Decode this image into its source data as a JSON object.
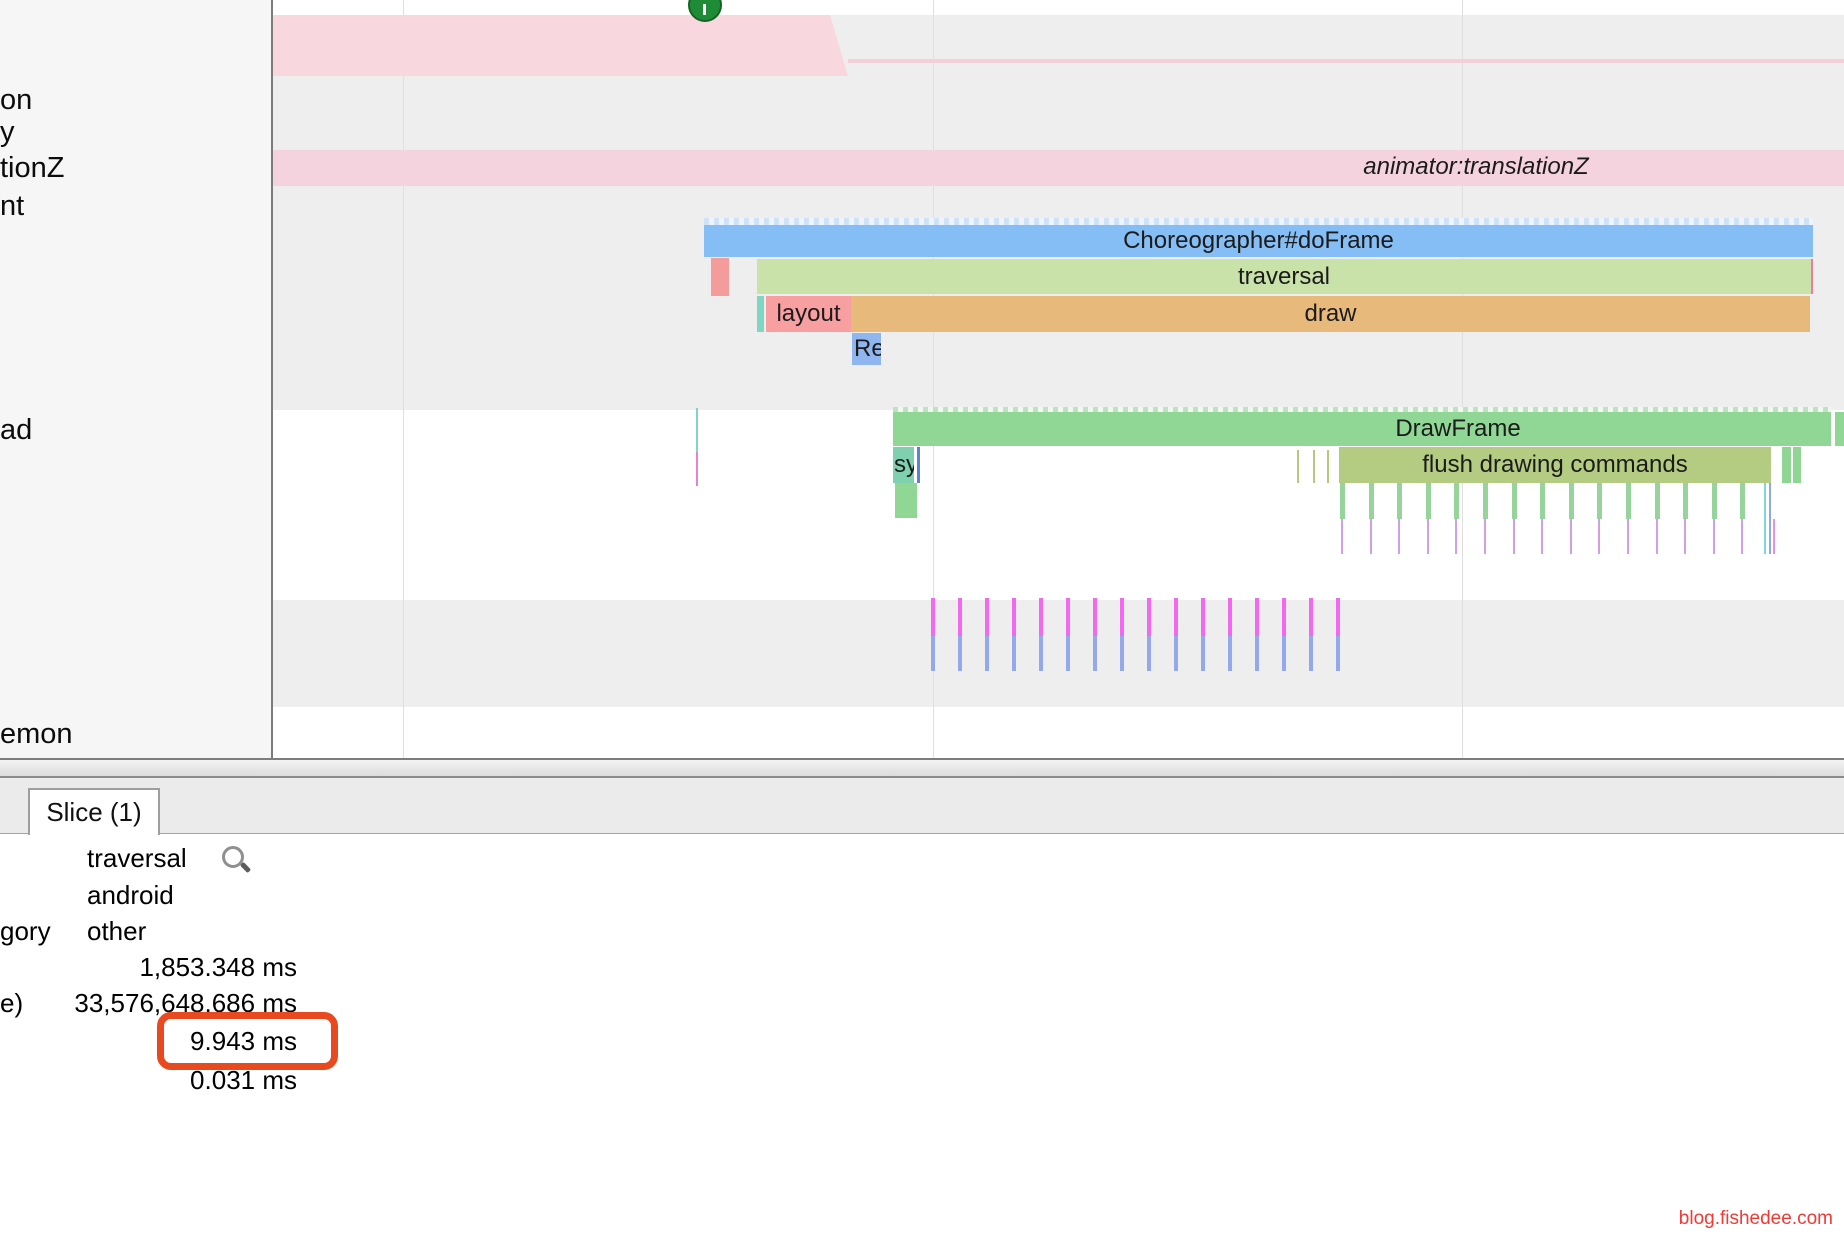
{
  "app": {
    "type": "android-trace-viewer"
  },
  "timeline": {
    "sidebar_fragments": [
      "on",
      "y",
      "tionZ",
      "nt",
      "ad",
      "emon"
    ],
    "marker": {
      "shape": "green-circle-pin"
    },
    "tracks": {
      "animator_label": "animator:translationZ",
      "choreographer_label": "Choreographer#doFrame",
      "traversal_label": "traversal",
      "layout_label": "layout",
      "draw_label": "draw",
      "record_fragment_label": "Re",
      "drawframe_label": "DrawFrame",
      "sync_fragment_label": "sy",
      "flush_label": "flush drawing commands"
    },
    "ticks": {
      "magenta_blue_count": 16,
      "flush_sub_count": 15
    }
  },
  "panel": {
    "tab_label": "Slice (1)",
    "rows": {
      "title_value": "traversal",
      "name_value": "android",
      "category_label_fragment": "gory",
      "category_value": "other",
      "start_value": "1,853.348 ms",
      "time_label_fragment": "e)",
      "time_value": "33,576,648,686 ms",
      "wall_duration_value": "9.943 ms",
      "cpu_duration_value": "0.031 ms"
    },
    "search_icon": "magnifier"
  },
  "footer": {
    "link_label": "blog.fishedee.com"
  },
  "colors": {
    "choreographer_blue": "#85bdf5",
    "traversal_green": "#c9e2a9",
    "layout_pink": "#f79fa1",
    "draw_orange": "#e7ba7c",
    "record_blue": "#8fb6ee",
    "drawframe_green": "#90d795",
    "sync_teal": "#7fd0af",
    "flush_olive": "#b3cc82",
    "animator_pink": "#f5d3de",
    "top_band_pink": "#f8d7de",
    "highlight_orange": "#e8491f",
    "tick_magenta": "#f268f0",
    "tick_blue": "#93a9ec",
    "link_red": "#ee3b35"
  }
}
